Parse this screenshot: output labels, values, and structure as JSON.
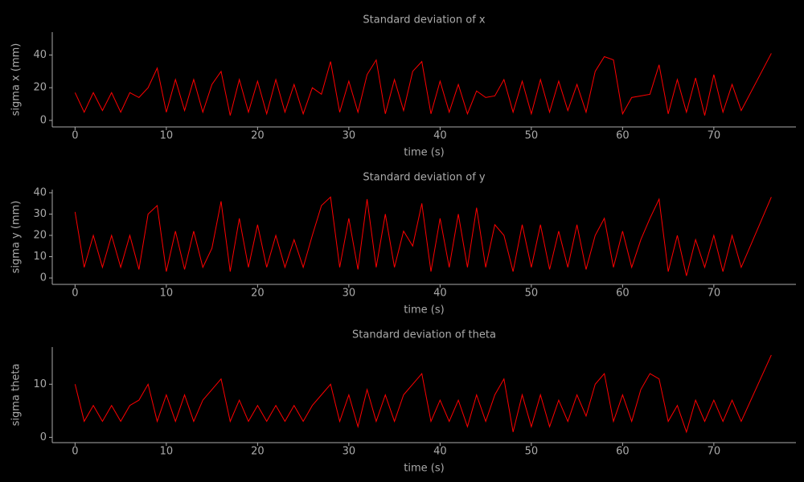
{
  "chart_data": [
    {
      "type": "line",
      "title": "Standard deviation of x",
      "xlabel": "time (s)",
      "ylabel": "sigma x (mm)",
      "color": "#ff0000",
      "xlim": [
        -2.5,
        79
      ],
      "xticks": [
        0,
        10,
        20,
        30,
        40,
        50,
        60,
        70
      ],
      "ylim": [
        -4,
        54
      ],
      "yticks": [
        0,
        20,
        40
      ],
      "x": [
        0,
        1,
        2,
        3,
        4,
        5,
        6,
        7,
        8,
        9,
        10,
        11,
        12,
        13,
        14,
        15,
        16,
        17,
        18,
        19,
        20,
        21,
        22,
        23,
        24,
        25,
        26,
        27,
        28,
        29,
        30,
        31,
        32,
        33,
        34,
        35,
        36,
        37,
        38,
        39,
        40,
        41,
        42,
        43,
        44,
        45,
        46,
        47,
        48,
        49,
        50,
        51,
        52,
        53,
        54,
        55,
        56,
        57,
        58,
        59,
        60,
        61,
        62,
        63,
        64,
        65,
        66,
        67,
        68,
        69,
        70,
        71,
        72,
        73,
        76.3
      ],
      "values": [
        17,
        5,
        17,
        6,
        17,
        5,
        17,
        14,
        20,
        32,
        5,
        25,
        6,
        25,
        5,
        22,
        30,
        3,
        25,
        5,
        24,
        4,
        25,
        5,
        22,
        4,
        20,
        16,
        36,
        5,
        24,
        5,
        28,
        37,
        4,
        25,
        6,
        30,
        36,
        4,
        24,
        5,
        22,
        4,
        18,
        14,
        15,
        25,
        5,
        24,
        4,
        25,
        5,
        24,
        6,
        22,
        5,
        30,
        39,
        37,
        4,
        14,
        15,
        16,
        34,
        4,
        25,
        5,
        26,
        3,
        28,
        5,
        22,
        6,
        41
      ]
    },
    {
      "type": "line",
      "title": "Standard deviation of y",
      "xlabel": "time (s)",
      "ylabel": "sigma y (mm)",
      "color": "#ff0000",
      "xlim": [
        -2.5,
        79
      ],
      "xticks": [
        0,
        10,
        20,
        30,
        40,
        50,
        60,
        70
      ],
      "ylim": [
        -3,
        41.5
      ],
      "yticks": [
        0,
        10,
        20,
        30,
        40
      ],
      "x": [
        0,
        1,
        2,
        3,
        4,
        5,
        6,
        7,
        8,
        9,
        10,
        11,
        12,
        13,
        14,
        15,
        16,
        17,
        18,
        19,
        20,
        21,
        22,
        23,
        24,
        25,
        26,
        27,
        28,
        29,
        30,
        31,
        32,
        33,
        34,
        35,
        36,
        37,
        38,
        39,
        40,
        41,
        42,
        43,
        44,
        45,
        46,
        47,
        48,
        49,
        50,
        51,
        52,
        53,
        54,
        55,
        56,
        57,
        58,
        59,
        60,
        61,
        62,
        63,
        64,
        65,
        66,
        67,
        68,
        69,
        70,
        71,
        72,
        73,
        76.3
      ],
      "values": [
        31,
        5,
        20,
        5,
        20,
        5,
        20,
        4,
        30,
        34,
        3,
        22,
        4,
        22,
        5,
        14,
        36,
        3,
        28,
        5,
        25,
        5,
        20,
        5,
        18,
        5,
        20,
        34,
        38,
        5,
        28,
        4,
        37,
        5,
        30,
        5,
        22,
        15,
        35,
        3,
        28,
        5,
        30,
        5,
        33,
        5,
        25,
        20,
        3,
        25,
        5,
        25,
        4,
        22,
        5,
        25,
        4,
        20,
        28,
        5,
        22,
        5,
        18,
        28,
        37,
        3,
        20,
        1,
        18,
        5,
        20,
        3,
        20,
        5,
        38
      ]
    },
    {
      "type": "line",
      "title": "Standard deviation of theta",
      "xlabel": "time (s)",
      "ylabel": "sigma theta",
      "color": "#ff0000",
      "xlim": [
        -2.5,
        79
      ],
      "xticks": [
        0,
        10,
        20,
        30,
        40,
        50,
        60,
        70
      ],
      "ylim": [
        -1,
        17
      ],
      "yticks": [
        0,
        10
      ],
      "x": [
        0,
        1,
        2,
        3,
        4,
        5,
        6,
        7,
        8,
        9,
        10,
        11,
        12,
        13,
        14,
        15,
        16,
        17,
        18,
        19,
        20,
        21,
        22,
        23,
        24,
        25,
        26,
        27,
        28,
        29,
        30,
        31,
        32,
        33,
        34,
        35,
        36,
        37,
        38,
        39,
        40,
        41,
        42,
        43,
        44,
        45,
        46,
        47,
        48,
        49,
        50,
        51,
        52,
        53,
        54,
        55,
        56,
        57,
        58,
        59,
        60,
        61,
        62,
        63,
        64,
        65,
        66,
        67,
        68,
        69,
        70,
        71,
        72,
        73,
        76.3
      ],
      "values": [
        10,
        3,
        6,
        3,
        6,
        3,
        6,
        7,
        10,
        3,
        8,
        3,
        8,
        3,
        7,
        9,
        11,
        3,
        7,
        3,
        6,
        3,
        6,
        3,
        6,
        3,
        6,
        8,
        10,
        3,
        8,
        2,
        9,
        3,
        8,
        3,
        8,
        10,
        12,
        3,
        7,
        3,
        7,
        2,
        8,
        3,
        8,
        11,
        1,
        8,
        2,
        8,
        2,
        7,
        3,
        8,
        4,
        10,
        12,
        3,
        8,
        3,
        9,
        12,
        11,
        3,
        6,
        1,
        7,
        3,
        7,
        3,
        7,
        3,
        15.5
      ]
    }
  ]
}
